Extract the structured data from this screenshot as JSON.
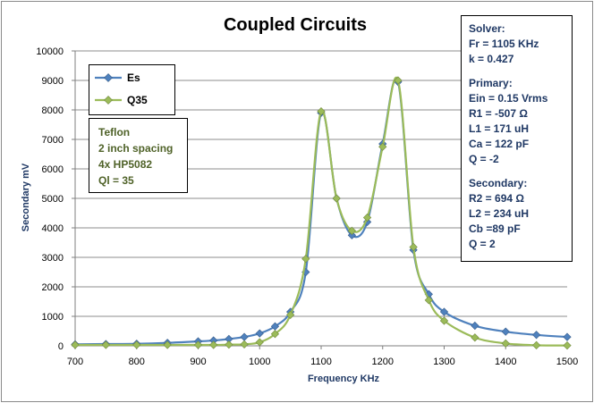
{
  "chart_data": {
    "type": "line",
    "title": "Coupled Circuits",
    "xlabel": "Frequency  KHz",
    "ylabel": "Secondary  mV",
    "xlim": [
      700,
      1500
    ],
    "ylim": [
      0,
      10000
    ],
    "x_ticks": [
      "700",
      "800",
      "900",
      "1000",
      "1100",
      "1200",
      "1300",
      "1400",
      "1500"
    ],
    "y_ticks": [
      "0",
      "1000",
      "2000",
      "3000",
      "4000",
      "5000",
      "6000",
      "7000",
      "8000",
      "9000",
      "10000"
    ],
    "grid": "horizontal",
    "legend_position": "top-left",
    "series": [
      {
        "name": "Es",
        "color": "#4f81bd",
        "marker": "diamond",
        "points": [
          [
            700,
            50
          ],
          [
            750,
            60
          ],
          [
            800,
            70
          ],
          [
            850,
            100
          ],
          [
            900,
            150
          ],
          [
            925,
            180
          ],
          [
            950,
            230
          ],
          [
            975,
            300
          ],
          [
            1000,
            420
          ],
          [
            1025,
            660
          ],
          [
            1050,
            1150
          ],
          [
            1075,
            2500
          ],
          [
            1100,
            7900
          ],
          [
            1125,
            5000
          ],
          [
            1150,
            3750
          ],
          [
            1175,
            4200
          ],
          [
            1200,
            6850
          ],
          [
            1225,
            8950
          ],
          [
            1250,
            3250
          ],
          [
            1275,
            1750
          ],
          [
            1300,
            1150
          ],
          [
            1350,
            680
          ],
          [
            1400,
            480
          ],
          [
            1450,
            370
          ],
          [
            1500,
            300
          ]
        ]
      },
      {
        "name": "Q35",
        "color": "#9bbb59",
        "marker": "diamond",
        "points": [
          [
            700,
            30
          ],
          [
            750,
            30
          ],
          [
            800,
            30
          ],
          [
            850,
            30
          ],
          [
            900,
            30
          ],
          [
            925,
            30
          ],
          [
            950,
            40
          ],
          [
            975,
            50
          ],
          [
            1000,
            120
          ],
          [
            1025,
            400
          ],
          [
            1050,
            1050
          ],
          [
            1075,
            2950
          ],
          [
            1100,
            7950
          ],
          [
            1125,
            5000
          ],
          [
            1150,
            3900
          ],
          [
            1175,
            4350
          ],
          [
            1200,
            6750
          ],
          [
            1225,
            9000
          ],
          [
            1250,
            3350
          ],
          [
            1275,
            1550
          ],
          [
            1300,
            850
          ],
          [
            1350,
            280
          ],
          [
            1400,
            80
          ],
          [
            1450,
            20
          ],
          [
            1500,
            10
          ]
        ]
      }
    ]
  },
  "note_box": {
    "lines": [
      "Teflon",
      "2 inch spacing",
      "4x HP5082",
      "Ql = 35"
    ]
  },
  "param_box": {
    "solver_title": "Solver:",
    "solver_lines": [
      "Fr = 1105 KHz",
      "k = 0.427"
    ],
    "primary_title": "Primary:",
    "primary_lines": [
      "Ein = 0.15 Vrms",
      "R1 = -507 Ω",
      "L1 = 171 uH",
      "Ca = 122 pF",
      "Q = -2"
    ],
    "secondary_title": "Secondary:",
    "secondary_lines": [
      "R2 = 694 Ω",
      "L2 = 234 uH",
      "Cb =89 pF",
      "Q = 2"
    ]
  }
}
